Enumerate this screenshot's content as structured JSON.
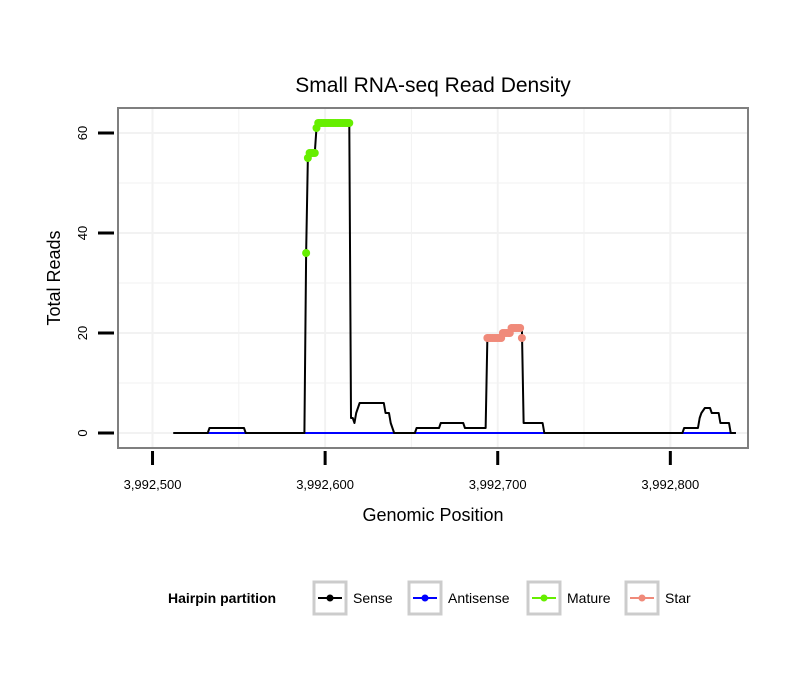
{
  "chart_data": {
    "type": "line",
    "title": "Small RNA-seq Read Density",
    "xlabel": "Genomic Position",
    "ylabel": "Total Reads",
    "xlim": [
      3992480,
      3992845
    ],
    "ylim": [
      -3,
      65
    ],
    "x_ticks": [
      3992500,
      3992600,
      3992700,
      3992800
    ],
    "x_tick_labels": [
      "3,992,500",
      "3,992,600",
      "3,992,700",
      "3,992,800"
    ],
    "y_ticks": [
      0,
      20,
      40,
      60
    ],
    "y_tick_labels": [
      "0",
      "20",
      "40",
      "60"
    ],
    "grid": true,
    "legend": {
      "title": "Hairpin partition",
      "position": "bottom",
      "entries": [
        "Sense",
        "Antisense",
        "Mature",
        "Star"
      ]
    },
    "series": [
      {
        "name": "Sense",
        "color": "#000000",
        "points": [
          [
            3992512,
            0
          ],
          [
            3992532,
            0
          ],
          [
            3992533,
            1
          ],
          [
            3992553,
            1
          ],
          [
            3992554,
            0
          ],
          [
            3992588,
            0
          ],
          [
            3992589,
            36
          ],
          [
            3992590,
            55
          ],
          [
            3992591,
            56
          ],
          [
            3992594,
            56
          ],
          [
            3992595,
            61
          ],
          [
            3992597,
            62
          ],
          [
            3992614,
            62
          ],
          [
            3992615,
            3
          ],
          [
            3992616,
            3
          ],
          [
            3992617,
            2
          ],
          [
            3992618,
            4
          ],
          [
            3992619,
            5
          ],
          [
            3992620,
            6
          ],
          [
            3992634,
            6
          ],
          [
            3992635,
            4
          ],
          [
            3992637,
            4
          ],
          [
            3992638,
            2
          ],
          [
            3992640,
            0
          ],
          [
            3992652,
            0
          ],
          [
            3992653,
            1
          ],
          [
            3992666,
            1
          ],
          [
            3992667,
            2
          ],
          [
            3992680,
            2
          ],
          [
            3992681,
            1
          ],
          [
            3992693,
            1
          ],
          [
            3992694,
            19
          ],
          [
            3992703,
            19
          ],
          [
            3992704,
            20
          ],
          [
            3992708,
            20
          ],
          [
            3992709,
            21
          ],
          [
            3992714,
            21
          ],
          [
            3992715,
            2
          ],
          [
            3992726,
            2
          ],
          [
            3992727,
            0
          ],
          [
            3992807,
            0
          ],
          [
            3992808,
            1
          ],
          [
            3992816,
            1
          ],
          [
            3992817,
            3
          ],
          [
            3992818,
            4
          ],
          [
            3992820,
            5
          ],
          [
            3992823,
            5
          ],
          [
            3992824,
            4
          ],
          [
            3992828,
            4
          ],
          [
            3992829,
            2
          ],
          [
            3992834,
            2
          ],
          [
            3992835,
            0
          ],
          [
            3992838,
            0
          ]
        ]
      },
      {
        "name": "Antisense",
        "color": "#0000ff",
        "points": [
          [
            3992532,
            0
          ],
          [
            3992555,
            0
          ],
          [
            3992589,
            0
          ],
          [
            3992727,
            0
          ],
          [
            3992808,
            0
          ],
          [
            3992838,
            0
          ]
        ]
      },
      {
        "name": "Mature",
        "color": "#66ee00",
        "points": [
          [
            3992589,
            36
          ],
          [
            3992590,
            55
          ],
          [
            3992591,
            56
          ],
          [
            3992592,
            56
          ],
          [
            3992593,
            56
          ],
          [
            3992594,
            56
          ],
          [
            3992595,
            61
          ],
          [
            3992596,
            62
          ],
          [
            3992597,
            62
          ],
          [
            3992598,
            62
          ],
          [
            3992599,
            62
          ],
          [
            3992600,
            62
          ],
          [
            3992601,
            62
          ],
          [
            3992602,
            62
          ],
          [
            3992603,
            62
          ],
          [
            3992604,
            62
          ],
          [
            3992605,
            62
          ],
          [
            3992606,
            62
          ],
          [
            3992607,
            62
          ],
          [
            3992608,
            62
          ],
          [
            3992609,
            62
          ],
          [
            3992610,
            62
          ],
          [
            3992611,
            62
          ],
          [
            3992612,
            62
          ],
          [
            3992613,
            62
          ],
          [
            3992614,
            62
          ]
        ]
      },
      {
        "name": "Star",
        "color": "#f08a7a",
        "points": [
          [
            3992694,
            19
          ],
          [
            3992695,
            19
          ],
          [
            3992696,
            19
          ],
          [
            3992697,
            19
          ],
          [
            3992698,
            19
          ],
          [
            3992699,
            19
          ],
          [
            3992700,
            19
          ],
          [
            3992701,
            19
          ],
          [
            3992702,
            19
          ],
          [
            3992703,
            20
          ],
          [
            3992704,
            20
          ],
          [
            3992705,
            20
          ],
          [
            3992706,
            20
          ],
          [
            3992707,
            20
          ],
          [
            3992708,
            21
          ],
          [
            3992709,
            21
          ],
          [
            3992710,
            21
          ],
          [
            3992711,
            21
          ],
          [
            3992712,
            21
          ],
          [
            3992713,
            21
          ],
          [
            3992714,
            19
          ]
        ]
      }
    ]
  }
}
